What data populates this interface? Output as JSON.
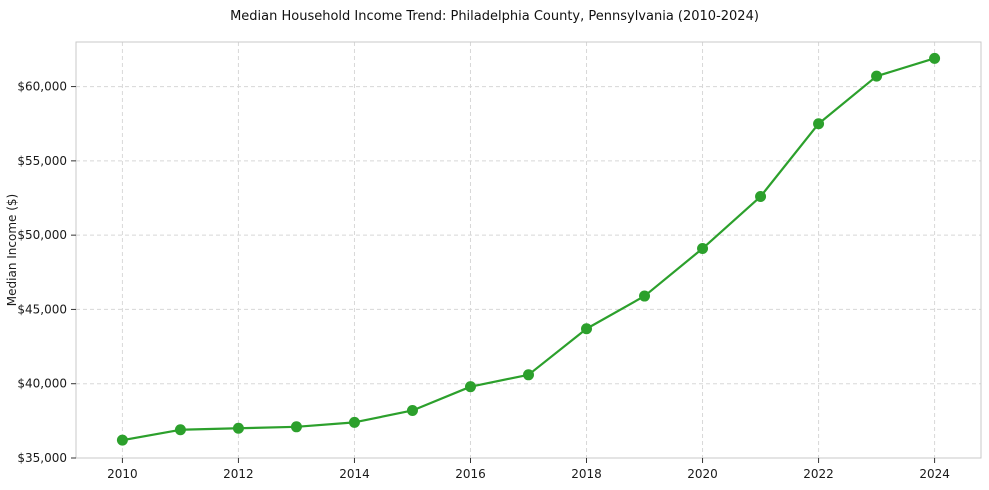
{
  "chart_data": {
    "type": "line",
    "title": "Median Household Income Trend: Philadelphia County, Pennsylvania (2010-2024)",
    "xlabel": "",
    "ylabel": "Median Income ($)",
    "x": [
      2010,
      2011,
      2012,
      2013,
      2014,
      2015,
      2016,
      2017,
      2018,
      2019,
      2020,
      2021,
      2022,
      2023,
      2024
    ],
    "values": [
      36200,
      36900,
      37000,
      37100,
      37400,
      38200,
      39800,
      40600,
      43700,
      45900,
      49100,
      52600,
      57500,
      60700,
      61900
    ],
    "series_name": "Median Household Income",
    "xticks": [
      2010,
      2012,
      2014,
      2016,
      2018,
      2020,
      2022,
      2024
    ],
    "yticks": [
      35000,
      40000,
      45000,
      50000,
      55000,
      60000
    ],
    "ytick_labels": [
      "$35,000",
      "$40,000",
      "$45,000",
      "$50,000",
      "$55,000",
      "$60,000"
    ],
    "xlim": [
      2009.2,
      2024.8
    ],
    "ylim": [
      35000,
      63000
    ],
    "grid": true,
    "grid_style": "dashed",
    "legend": "none",
    "colors": {
      "line": "#2ca02c",
      "marker": "#2ca02c",
      "grid": "#d8d8d8",
      "border": "#c9c9c9",
      "text": "#1a1a1a",
      "background": "#ffffff"
    }
  }
}
